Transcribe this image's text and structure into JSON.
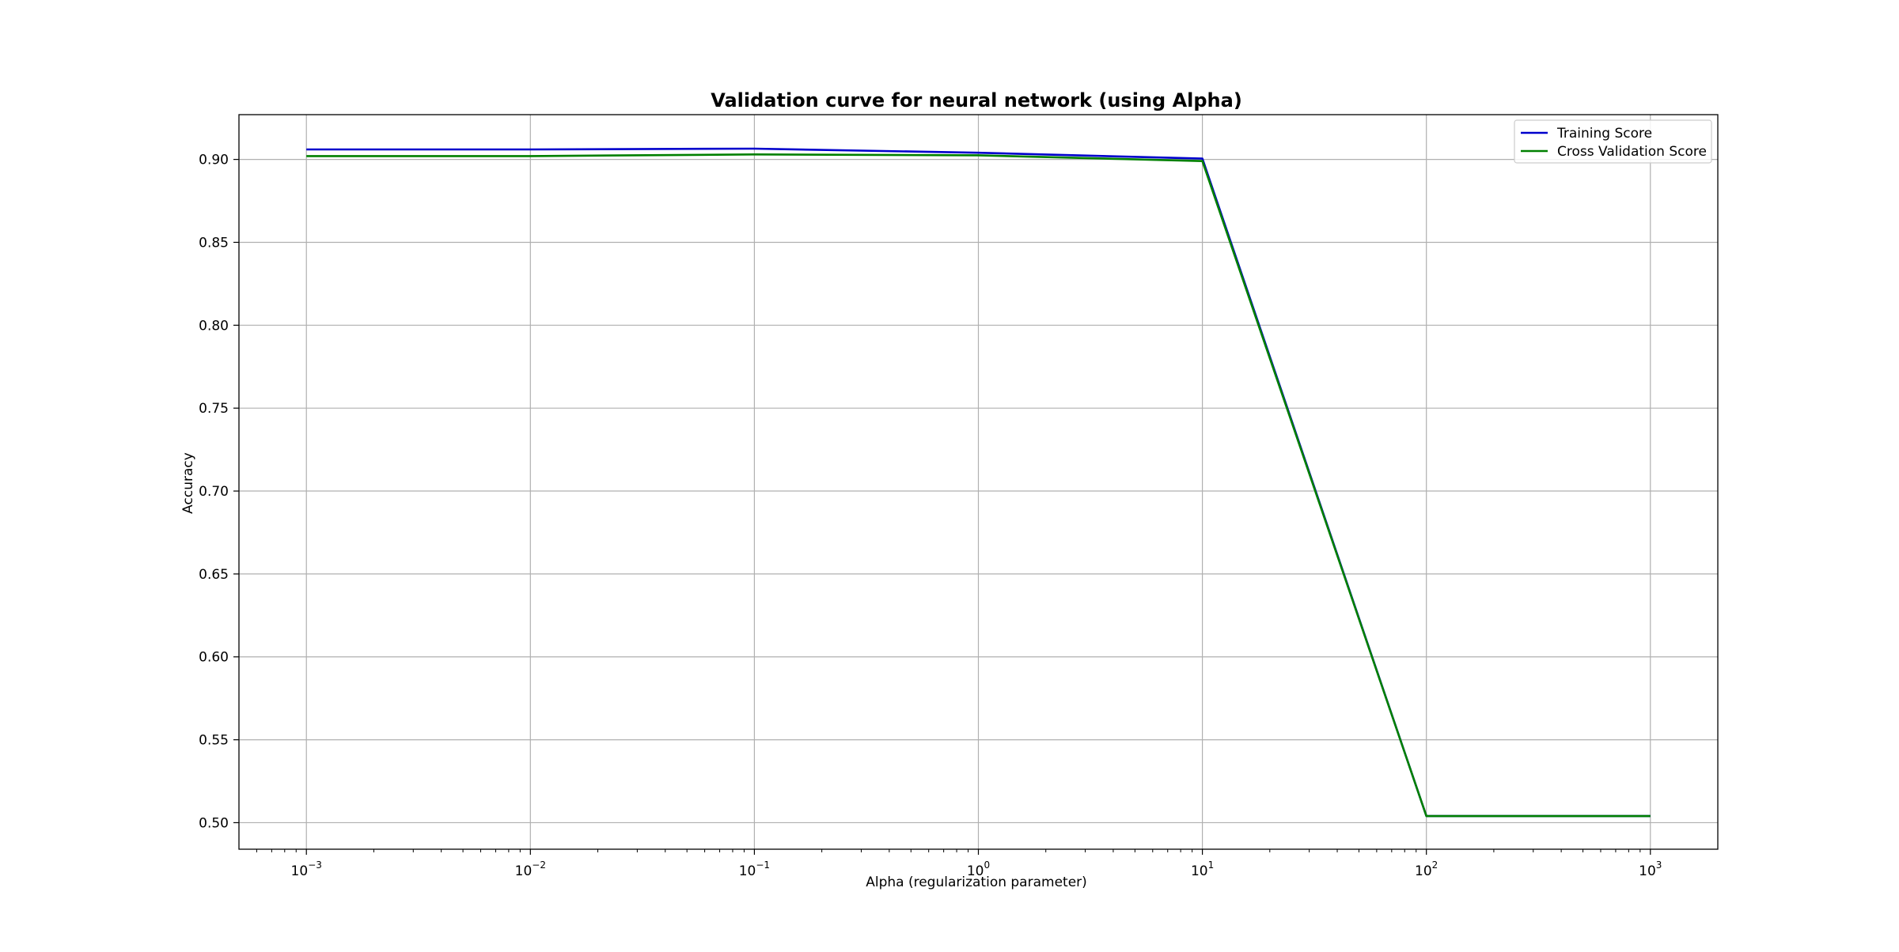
{
  "chart_data": {
    "type": "line",
    "title": "Validation curve for neural network (using Alpha)",
    "xlabel": "Alpha (regularization parameter)",
    "ylabel": "Accuracy",
    "x_scale": "log",
    "x": [
      0.001,
      0.01,
      0.1,
      1,
      10,
      100,
      1000
    ],
    "xlim": [
      0.0005,
      2000
    ],
    "ylim": [
      0.484,
      0.927
    ],
    "x_ticks": [
      {
        "value": 0.001,
        "base": "10",
        "exp": "−3"
      },
      {
        "value": 0.01,
        "base": "10",
        "exp": "−2"
      },
      {
        "value": 0.1,
        "base": "10",
        "exp": "−1"
      },
      {
        "value": 1,
        "base": "10",
        "exp": "0"
      },
      {
        "value": 10,
        "base": "10",
        "exp": "1"
      },
      {
        "value": 100,
        "base": "10",
        "exp": "2"
      },
      {
        "value": 1000,
        "base": "10",
        "exp": "3"
      }
    ],
    "y_ticks": [
      "0.50",
      "0.55",
      "0.60",
      "0.65",
      "0.70",
      "0.75",
      "0.80",
      "0.85",
      "0.90"
    ],
    "grid": true,
    "legend_position": "top-right",
    "series": [
      {
        "name": "Training Score",
        "color": "#0000cc",
        "values": [
          0.906,
          0.906,
          0.9065,
          0.904,
          0.9005,
          0.504,
          0.504
        ]
      },
      {
        "name": "Cross Validation Score",
        "color": "#008000",
        "values": [
          0.902,
          0.902,
          0.903,
          0.9025,
          0.899,
          0.504,
          0.504
        ]
      }
    ]
  }
}
